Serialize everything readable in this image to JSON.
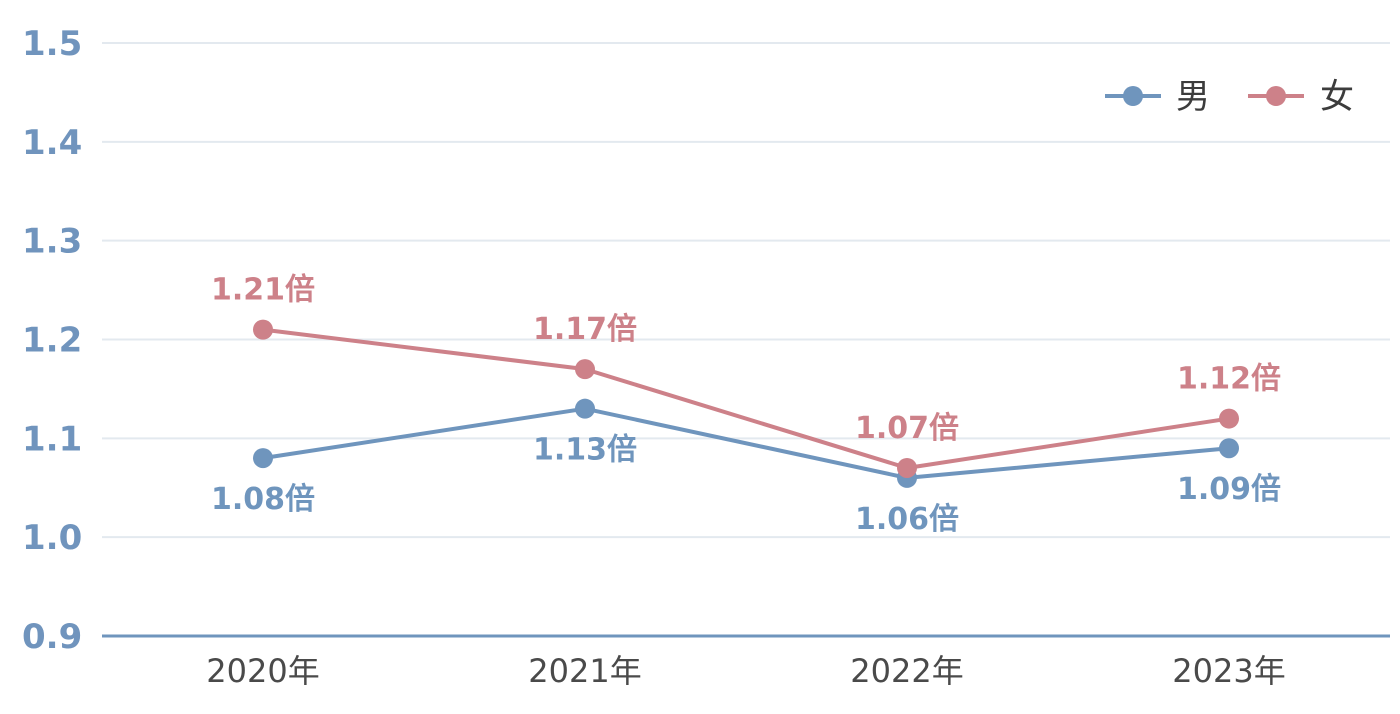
{
  "chart_data": {
    "type": "line",
    "categories": [
      "2020年",
      "2021年",
      "2022年",
      "2023年"
    ],
    "ylim": [
      0.9,
      1.5
    ],
    "yticks": [
      "0.9",
      "1.0",
      "1.1",
      "1.2",
      "1.3",
      "1.4",
      "1.5"
    ],
    "grid": true,
    "legend_position": "top-right",
    "value_suffix": "倍",
    "series": [
      {
        "name": "男",
        "color": "#6f95bd",
        "values": [
          1.08,
          1.13,
          1.06,
          1.09
        ],
        "labels": [
          "1.08",
          "1.13",
          "1.06",
          "1.09"
        ]
      },
      {
        "name": "女",
        "color": "#cd8189",
        "values": [
          1.21,
          1.17,
          1.07,
          1.12
        ],
        "labels": [
          "1.21",
          "1.17",
          "1.07",
          "1.12"
        ]
      }
    ]
  }
}
